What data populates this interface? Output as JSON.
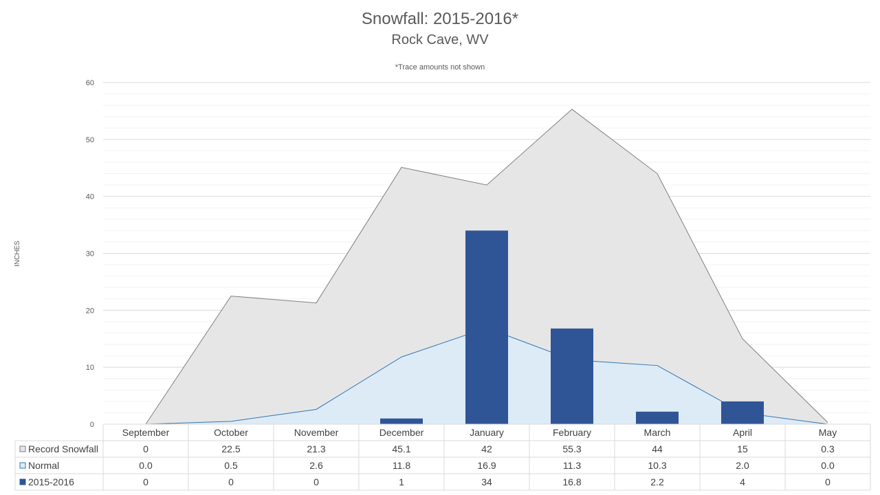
{
  "colors": {
    "record_fill": "#e7e6e6",
    "record_line": "#7f7f7f",
    "normal_fill": "#ddebf7",
    "normal_line": "#2e75b6",
    "bar": "#2f5597",
    "grid_major": "#d9d9d9",
    "grid_minor": "#f2f2f2",
    "text": "#595959"
  },
  "chart_data": {
    "type": "area",
    "title": "Snowfall: 2015-2016*",
    "subtitle": "Rock Cave, WV",
    "note": "*Trace amounts not shown",
    "ylabel": "INCHES",
    "ylim": [
      0,
      60
    ],
    "yticks": [
      0,
      10,
      20,
      30,
      40,
      50,
      60
    ],
    "grid": true,
    "categories": [
      "September",
      "October",
      "November",
      "December",
      "January",
      "February",
      "March",
      "April",
      "May"
    ],
    "series": [
      {
        "name": "Record Snowfall",
        "type": "area",
        "values": [
          0,
          22.5,
          21.3,
          45.1,
          42,
          55.3,
          44,
          15,
          0.3
        ],
        "labels": [
          "0",
          "22.5",
          "21.3",
          "45.1",
          "42",
          "55.3",
          "44",
          "15",
          "0.3"
        ]
      },
      {
        "name": "Normal",
        "type": "area",
        "values": [
          0.0,
          0.5,
          2.6,
          11.8,
          16.9,
          11.3,
          10.3,
          2.0,
          0.0
        ],
        "labels": [
          "0.0",
          "0.5",
          "2.6",
          "11.8",
          "16.9",
          "11.3",
          "10.3",
          "2.0",
          "0.0"
        ]
      },
      {
        "name": "2015-2016",
        "type": "bar",
        "values": [
          0,
          0,
          0,
          1,
          34,
          16.8,
          2.2,
          4,
          0
        ],
        "labels": [
          "0",
          "0",
          "0",
          "1",
          "34",
          "16.8",
          "2.2",
          "4",
          "0"
        ]
      }
    ]
  }
}
